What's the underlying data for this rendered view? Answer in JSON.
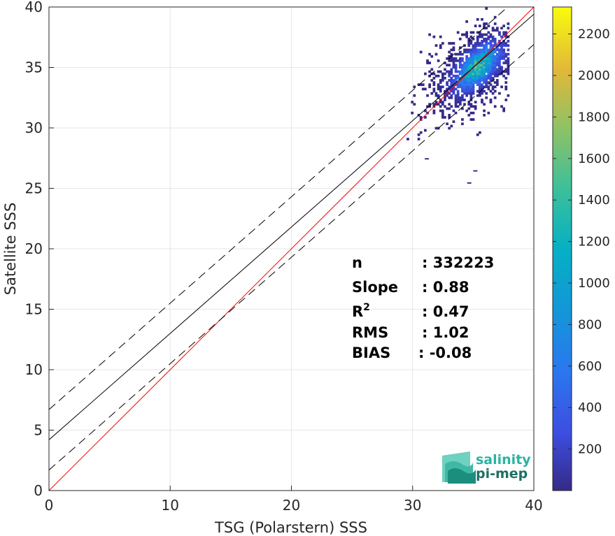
{
  "chart_data": {
    "type": "heatmap",
    "xlabel": "TSG (Polarstern) SSS",
    "ylabel": "Satellite SSS",
    "xlim": [
      0,
      40
    ],
    "ylim": [
      0,
      40
    ],
    "xticks": [
      0,
      10,
      20,
      30,
      40
    ],
    "yticks": [
      0,
      5,
      10,
      15,
      20,
      25,
      30,
      35,
      40
    ],
    "grid": true,
    "colorbar": {
      "range": [
        0,
        2330
      ],
      "ticks": [
        200,
        400,
        600,
        800,
        1000,
        1200,
        1400,
        1600,
        1800,
        2000,
        2200
      ]
    },
    "lines": [
      {
        "name": "one-to-one",
        "color": "#ff0000",
        "style": "solid",
        "x": [
          0,
          40
        ],
        "y": [
          0,
          40
        ]
      },
      {
        "name": "regression",
        "color": "#000000",
        "style": "solid",
        "x": [
          0,
          40
        ],
        "y": [
          4.2,
          39.4
        ]
      },
      {
        "name": "upper-bound",
        "color": "#000000",
        "style": "dashed",
        "x": [
          0,
          40
        ],
        "y": [
          6.7,
          41.9
        ]
      },
      {
        "name": "lower-bound",
        "color": "#000000",
        "style": "dashed",
        "x": [
          0,
          40
        ],
        "y": [
          1.7,
          36.9
        ]
      }
    ],
    "density_cluster": {
      "x_range": [
        29.5,
        38.0
      ],
      "y_range": [
        29.0,
        40.0
      ],
      "peak": [
        35.5,
        35.5
      ],
      "outliers": [
        [
          31.0,
          27.5
        ],
        [
          35.0,
          26.5
        ],
        [
          34.5,
          25.5
        ]
      ]
    },
    "stats": [
      {
        "label": "n",
        "value": ": 332223"
      },
      {
        "label": "Slope",
        "value": ": 0.88"
      },
      {
        "label": "R",
        "sup": "2",
        "value": ": 0.47"
      },
      {
        "label": "RMS",
        "value": ": 1.02"
      },
      {
        "label": "BIAS",
        "value": ": -0.08"
      }
    ]
  },
  "logo": {
    "line1": "salinity",
    "line2": "pi-mep"
  }
}
